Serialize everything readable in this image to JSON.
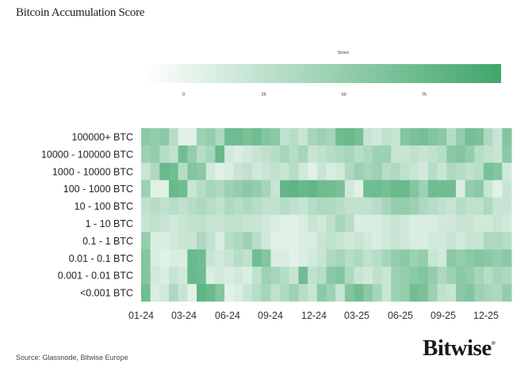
{
  "chart_data": {
    "type": "heatmap",
    "title": "Bitcoin Accumulation Score",
    "colorbar": {
      "label": "Score",
      "ticks": [
        0,
        25,
        50,
        75
      ],
      "range": [
        -12,
        99
      ],
      "color_low": "#ffffff",
      "color_high": "#3fa66b"
    },
    "x_tick_labels": [
      "01-24",
      "03-24",
      "06-24",
      "09-24",
      "12-24",
      "03-25",
      "06-25",
      "09-25",
      "12-25"
    ],
    "rows": [
      {
        "label": "100000+ BTC",
        "values": [
          55,
          50,
          55,
          30,
          5,
          5,
          45,
          50,
          35,
          70,
          72,
          65,
          70,
          60,
          55,
          25,
          30,
          20,
          40,
          45,
          40,
          70,
          75,
          68,
          20,
          15,
          25,
          20,
          60,
          65,
          68,
          60,
          55,
          30,
          50,
          68,
          65,
          35,
          20,
          60
        ]
      },
      {
        "label": "10000 - 100000 BTC",
        "values": [
          45,
          50,
          30,
          25,
          70,
          50,
          30,
          40,
          75,
          15,
          10,
          15,
          20,
          25,
          30,
          40,
          30,
          40,
          20,
          25,
          30,
          35,
          40,
          30,
          35,
          45,
          45,
          20,
          20,
          25,
          20,
          25,
          30,
          55,
          60,
          50,
          30,
          25,
          20,
          55
        ]
      },
      {
        "label": "1000 - 10000 BTC",
        "values": [
          20,
          35,
          75,
          70,
          30,
          60,
          55,
          15,
          5,
          10,
          20,
          25,
          15,
          20,
          25,
          20,
          30,
          15,
          5,
          20,
          10,
          15,
          35,
          45,
          40,
          45,
          30,
          35,
          25,
          20,
          15,
          30,
          20,
          35,
          30,
          25,
          30,
          65,
          60,
          15
        ]
      },
      {
        "label": "100 - 1000 BTC",
        "values": [
          45,
          5,
          5,
          75,
          72,
          20,
          30,
          40,
          35,
          45,
          50,
          55,
          50,
          40,
          20,
          78,
          80,
          75,
          78,
          72,
          70,
          65,
          15,
          5,
          70,
          72,
          68,
          75,
          75,
          60,
          45,
          72,
          70,
          72,
          10,
          50,
          55,
          20,
          5,
          20
        ]
      },
      {
        "label": "10 - 100 BTC",
        "values": [
          25,
          30,
          25,
          30,
          25,
          30,
          35,
          30,
          25,
          35,
          30,
          35,
          30,
          25,
          25,
          30,
          25,
          20,
          30,
          35,
          35,
          30,
          25,
          25,
          25,
          30,
          40,
          50,
          50,
          45,
          35,
          30,
          25,
          20,
          30,
          25,
          25,
          35,
          20,
          20
        ]
      },
      {
        "label": "1 - 10 BTC",
        "values": [
          20,
          25,
          20,
          15,
          20,
          25,
          25,
          20,
          20,
          25,
          25,
          20,
          20,
          15,
          10,
          5,
          5,
          10,
          20,
          15,
          25,
          40,
          30,
          10,
          10,
          10,
          15,
          20,
          15,
          10,
          10,
          10,
          15,
          15,
          20,
          20,
          15,
          15,
          20,
          15
        ]
      },
      {
        "label": "0.1 - 1 BTC",
        "values": [
          50,
          10,
          10,
          15,
          20,
          20,
          35,
          25,
          10,
          30,
          35,
          45,
          30,
          15,
          5,
          5,
          5,
          10,
          10,
          20,
          25,
          20,
          15,
          20,
          15,
          10,
          15,
          20,
          15,
          10,
          10,
          15,
          15,
          20,
          15,
          20,
          20,
          35,
          35,
          30
        ]
      },
      {
        "label": "0.01 - 0.1 BTC",
        "values": [
          60,
          10,
          5,
          10,
          10,
          75,
          70,
          20,
          15,
          20,
          30,
          25,
          70,
          60,
          10,
          10,
          5,
          10,
          15,
          20,
          35,
          40,
          30,
          35,
          25,
          30,
          40,
          50,
          55,
          45,
          50,
          20,
          15,
          55,
          50,
          55,
          60,
          55,
          50,
          55
        ]
      },
      {
        "label": "0.001 - 0.01 BTC",
        "values": [
          60,
          15,
          10,
          20,
          15,
          75,
          72,
          10,
          15,
          10,
          15,
          10,
          25,
          45,
          40,
          30,
          20,
          70,
          25,
          30,
          55,
          60,
          35,
          20,
          15,
          25,
          20,
          45,
          50,
          55,
          60,
          50,
          35,
          45,
          55,
          50,
          40,
          30,
          40,
          35
        ]
      },
      {
        "label": "<0.001 BTC",
        "values": [
          70,
          10,
          15,
          35,
          20,
          5,
          80,
          75,
          60,
          5,
          10,
          20,
          30,
          40,
          25,
          35,
          45,
          30,
          20,
          55,
          45,
          20,
          60,
          70,
          55,
          40,
          20,
          45,
          50,
          70,
          65,
          45,
          25,
          20,
          55,
          60,
          45,
          40,
          35,
          50
        ]
      }
    ]
  },
  "footer": {
    "source": "Source: Glassnode, Bitwise Europe",
    "logo": "Bitwise",
    "logo_mark": "®"
  }
}
